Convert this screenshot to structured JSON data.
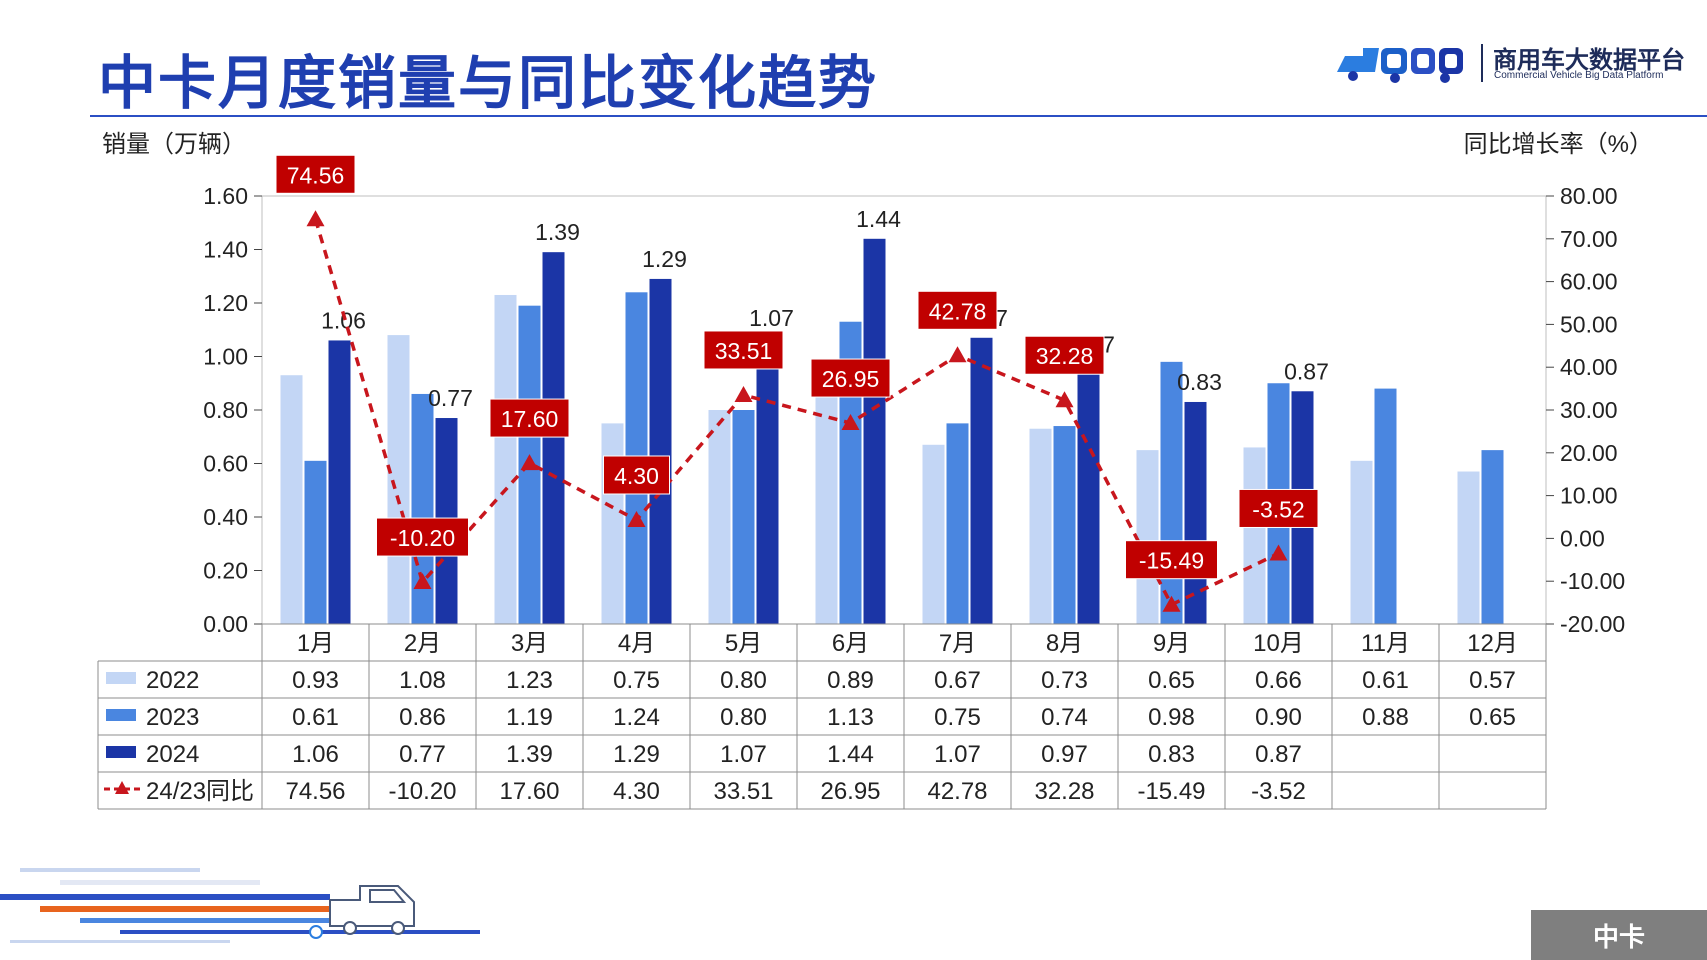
{
  "header": {
    "title": "中卡月度销量与同比变化趋势",
    "logo_name": "商用车大数据平台",
    "logo_sub": "Commercial Vehicle Big Data Platform",
    "logo_mark_icon": "cvbd-truck-logo-icon"
  },
  "axis_titles": {
    "left": "销量（万辆）",
    "right": "同比增长率（%）"
  },
  "chart_data": {
    "type": "bar",
    "categories": [
      "1月",
      "2月",
      "3月",
      "4月",
      "5月",
      "6月",
      "7月",
      "8月",
      "9月",
      "10月",
      "11月",
      "12月"
    ],
    "series": [
      {
        "name": "2022",
        "type": "bar",
        "axis": "left",
        "color": "#c3d6f5",
        "values": [
          0.93,
          1.08,
          1.23,
          0.75,
          0.8,
          0.89,
          0.67,
          0.73,
          0.65,
          0.66,
          0.61,
          0.57
        ]
      },
      {
        "name": "2023",
        "type": "bar",
        "axis": "left",
        "color": "#4a86e0",
        "values": [
          0.61,
          0.86,
          1.19,
          1.24,
          0.8,
          1.13,
          0.75,
          0.74,
          0.98,
          0.9,
          0.88,
          0.65
        ]
      },
      {
        "name": "2024",
        "type": "bar",
        "axis": "left",
        "color": "#1b35a6",
        "values": [
          1.06,
          0.77,
          1.39,
          1.29,
          1.07,
          1.44,
          1.07,
          0.97,
          0.83,
          0.87,
          null,
          null
        ],
        "labels": [
          "1.06",
          "0.77",
          "1.39",
          "1.29",
          "1.07",
          "1.44",
          "1.07",
          "0.97",
          "0.83",
          "0.87",
          "",
          ""
        ]
      },
      {
        "name": "24/23同比",
        "type": "line",
        "axis": "right",
        "color": "#c8161d",
        "style": "dashed",
        "marker": "triangle",
        "values": [
          74.56,
          -10.2,
          17.6,
          4.3,
          33.51,
          26.95,
          42.78,
          32.28,
          -15.49,
          -3.52,
          null,
          null
        ],
        "labels": [
          "74.56",
          "-10.20",
          "17.60",
          "4.30",
          "33.51",
          "26.95",
          "42.78",
          "32.28",
          "-15.49",
          "-3.52",
          "",
          ""
        ]
      }
    ],
    "y_left": {
      "min": 0,
      "max": 1.6,
      "step": 0.2,
      "ticks": [
        "0.00",
        "0.20",
        "0.40",
        "0.60",
        "0.80",
        "1.00",
        "1.20",
        "1.40",
        "1.60"
      ]
    },
    "y_right": {
      "min": -20,
      "max": 80,
      "step": 10,
      "ticks": [
        "-20.00",
        "-10.00",
        "0.00",
        "10.00",
        "20.00",
        "30.00",
        "40.00",
        "50.00",
        "60.00",
        "70.00",
        "80.00"
      ]
    },
    "grid": false,
    "data_table": {
      "rows": [
        {
          "label": "2022",
          "cells": [
            "0.93",
            "1.08",
            "1.23",
            "0.75",
            "0.80",
            "0.89",
            "0.67",
            "0.73",
            "0.65",
            "0.66",
            "0.61",
            "0.57"
          ]
        },
        {
          "label": "2023",
          "cells": [
            "0.61",
            "0.86",
            "1.19",
            "1.24",
            "0.80",
            "1.13",
            "0.75",
            "0.74",
            "0.98",
            "0.90",
            "0.88",
            "0.65"
          ]
        },
        {
          "label": "2024",
          "cells": [
            "1.06",
            "0.77",
            "1.39",
            "1.29",
            "1.07",
            "1.44",
            "1.07",
            "0.97",
            "0.83",
            "0.87",
            "",
            ""
          ]
        },
        {
          "label": "24/23同比",
          "cells": [
            "74.56",
            "-10.20",
            "17.60",
            "4.30",
            "33.51",
            "26.95",
            "42.78",
            "32.28",
            "-15.49",
            "-3.52",
            "",
            ""
          ]
        }
      ]
    }
  },
  "footer": {
    "tag": "中卡",
    "decoration_icon": "truck-speed-lines-icon"
  }
}
